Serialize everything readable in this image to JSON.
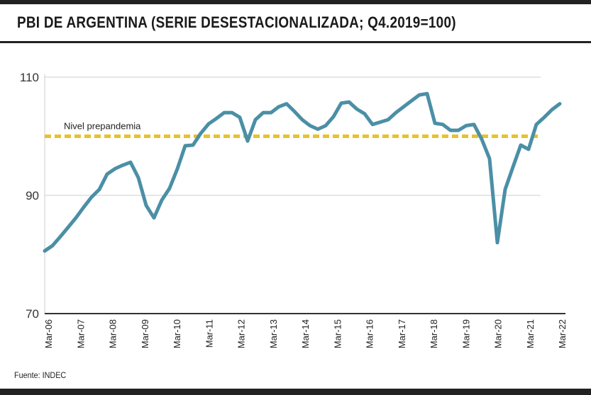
{
  "title": "PBI DE ARGENTINA (SERIE DESESTACIONALIZADA; Q4.2019=100)",
  "source": "Fuente: INDEC",
  "colors": {
    "series": "#4b8fa6",
    "reference": "#e8c22c",
    "axis": "#333333",
    "grid": "#cccccc"
  },
  "chart_data": {
    "type": "line",
    "title": "PBI DE ARGENTINA (SERIE DESESTACIONALIZADA; Q4.2019=100)",
    "xlabel": "",
    "ylabel": "",
    "ylim": [
      70,
      110
    ],
    "yticks": [
      70,
      90,
      110
    ],
    "grid": true,
    "xticks": [
      "Mar-06",
      "Mar-07",
      "Mar-08",
      "Mar-09",
      "Mar-10",
      "Mar-11",
      "Mar-12",
      "Mar-13",
      "Mar-14",
      "Mar-15",
      "Mar-16",
      "Mar-17",
      "Mar-18",
      "Mar-19",
      "Mar-20",
      "Mar-21",
      "Mar-22"
    ],
    "reference_line": {
      "label": "Nivel prepandemia",
      "value": 100
    },
    "series": [
      {
        "values": [
          80.6,
          81.5,
          83.0,
          84.6,
          86.2,
          88.0,
          89.7,
          91.0,
          93.6,
          94.5,
          95.1,
          95.6,
          93.0,
          88.3,
          86.2,
          89.2,
          91.2,
          94.5,
          98.4,
          98.5,
          100.5,
          102.1,
          103.0,
          104.0,
          104.0,
          103.2,
          99.2,
          102.8,
          104.0,
          104.0,
          105.0,
          105.5,
          104.2,
          102.8,
          101.8,
          101.2,
          101.8,
          103.3,
          105.6,
          105.8,
          104.6,
          103.8,
          102.0,
          102.4,
          102.8,
          104.0,
          105.0,
          106.0,
          107.0,
          107.2,
          102.2,
          102.0,
          101.0,
          101.0,
          101.8,
          102.0,
          99.5,
          96.2,
          82.0,
          91.0,
          94.8,
          98.5,
          97.8,
          102.0,
          103.2,
          104.5,
          105.5
        ]
      }
    ]
  }
}
